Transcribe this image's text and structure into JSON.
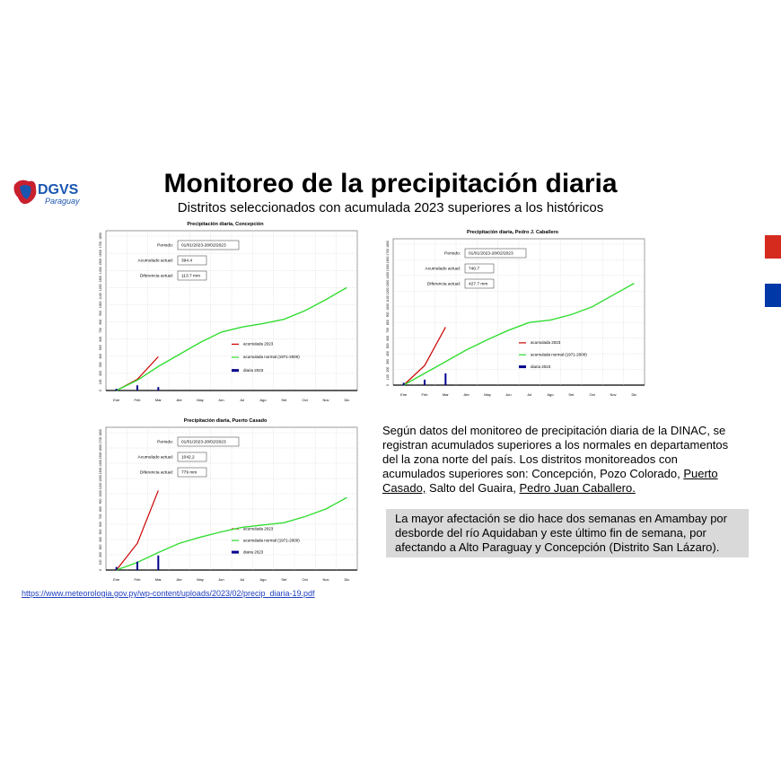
{
  "logo": {
    "text": "DGVS",
    "subtext": "Paraguay"
  },
  "header": {
    "title": "Monitoreo de la precipitación diaria",
    "subtitle": "Distritos seleccionados con acumulada 2023 superiores a los históricos"
  },
  "chart_data": [
    {
      "type": "line",
      "title": "Precipitación diaria, Concepción",
      "info": [
        {
          "label": "Periodo:",
          "value": "01/01/2023-28/02/2023"
        },
        {
          "label": "Acumulado actual:",
          "value": "394.4"
        },
        {
          "label": "Diferencia actual:",
          "value": "113.7 mm"
        }
      ],
      "categories": [
        "Ene",
        "Feb",
        "Mar",
        "Abr",
        "May",
        "Jun",
        "Jul",
        "Ago",
        "Set",
        "Oct",
        "Nov",
        "Dic"
      ],
      "ylim": [
        0,
        1800
      ],
      "yticks": [
        0,
        100,
        200,
        300,
        400,
        500,
        600,
        700,
        800,
        900,
        1000,
        1100,
        1200,
        1300,
        1400,
        1500,
        1600,
        1700,
        1800
      ],
      "grid": true,
      "series": [
        {
          "name": "acumulada 2023",
          "color": "#cc0000",
          "style": "line",
          "values": [
            0,
            130,
            394,
            null,
            null,
            null,
            null,
            null,
            null,
            null,
            null,
            null
          ]
        },
        {
          "name": "acumulada normal (1971-2000)",
          "color": "#33dd33",
          "style": "line",
          "values": [
            0,
            120,
            280,
            420,
            560,
            680,
            740,
            780,
            830,
            930,
            1060,
            1200
          ]
        },
        {
          "name": "diaria 2023",
          "color": "#00008b",
          "style": "bar",
          "values": [
            20,
            60,
            40,
            null,
            null,
            null,
            null,
            null,
            null,
            null,
            null,
            null
          ]
        }
      ]
    },
    {
      "type": "line",
      "title": "Precipitación diaria, Pedro J. Caballero",
      "info": [
        {
          "label": "Periodo:",
          "value": "01/01/2023-28/02/2023"
        },
        {
          "label": "Acumulado actual:",
          "value": "740.7"
        },
        {
          "label": "Diferencia actual:",
          "value": "427.7 mm"
        }
      ],
      "categories": [
        "Ene",
        "Feb",
        "Mar",
        "Abr",
        "May",
        "Jun",
        "Jul",
        "Ago",
        "Set",
        "Oct",
        "Nov",
        "Dic"
      ],
      "ylim": [
        0,
        1800
      ],
      "yticks": [
        0,
        100,
        200,
        300,
        400,
        500,
        600,
        700,
        800,
        900,
        1000,
        1100,
        1200,
        1300,
        1400,
        1500,
        1600,
        1700,
        1800
      ],
      "grid": true,
      "series": [
        {
          "name": "acumulada 2023",
          "color": "#cc0000",
          "style": "line",
          "values": [
            0,
            250,
            740,
            null,
            null,
            null,
            null,
            null,
            null,
            null,
            null,
            null
          ]
        },
        {
          "name": "acumulada normal (1971-2000)",
          "color": "#33dd33",
          "style": "line",
          "values": [
            0,
            150,
            300,
            450,
            580,
            700,
            800,
            830,
            900,
            1000,
            1150,
            1300
          ]
        },
        {
          "name": "diaria 2023",
          "color": "#00008b",
          "style": "bar",
          "values": [
            30,
            70,
            150,
            null,
            null,
            null,
            null,
            null,
            null,
            null,
            null,
            null
          ]
        }
      ]
    },
    {
      "type": "line",
      "title": "Precipitación diaria, Puerto Casado",
      "info": [
        {
          "label": "Periodo:",
          "value": "01/01/2023-28/02/2023"
        },
        {
          "label": "Acumulado actual:",
          "value": "1042.2"
        },
        {
          "label": "Diferencia actual:",
          "value": "779 mm"
        }
      ],
      "categories": [
        "Ene",
        "Feb",
        "Mar",
        "Abr",
        "May",
        "Jun",
        "Jul",
        "Ago",
        "Set",
        "Oct",
        "Nov",
        "Dic"
      ],
      "ylim": [
        0,
        1800
      ],
      "yticks": [
        0,
        100,
        200,
        300,
        400,
        500,
        600,
        700,
        800,
        900,
        1000,
        1100,
        1200,
        1300,
        1400,
        1500,
        1600,
        1700,
        1800
      ],
      "grid": true,
      "series": [
        {
          "name": "acumulada 2023",
          "color": "#cc0000",
          "style": "line",
          "values": [
            0,
            350,
            1042,
            null,
            null,
            null,
            null,
            null,
            null,
            null,
            null,
            null
          ]
        },
        {
          "name": "acumulada normal (1971-2000)",
          "color": "#33dd33",
          "style": "line",
          "values": [
            0,
            100,
            230,
            350,
            430,
            500,
            560,
            590,
            620,
            700,
            800,
            950
          ]
        },
        {
          "name": "diaria 2023",
          "color": "#00008b",
          "style": "bar",
          "values": [
            40,
            110,
            190,
            null,
            null,
            null,
            null,
            null,
            null,
            null,
            null,
            null
          ]
        }
      ]
    }
  ],
  "paragraph": {
    "parts": [
      "Según datos del monitoreo de precipitación diaria de la DINAC, se registran acumulados superiores a los normales en departamentos del la zona norte del país. Los distritos monitoreados con acumulados superiores son: Concepción, Pozo Colorado, ",
      "Puerto Casado,",
      " Salto del Guaira, ",
      "Pedro Juan Caballero."
    ]
  },
  "callout": "La mayor afectación se dio hace dos semanas en Amambay por desborde del río Aquidaban y este último fin de semana, por afectando a Alto Paraguay y Concepción (Distrito San Lázaro).",
  "source_link": "https://www.meteorologia.gov.py/wp-content/uploads/2023/02/precip_diaria-19.pdf"
}
